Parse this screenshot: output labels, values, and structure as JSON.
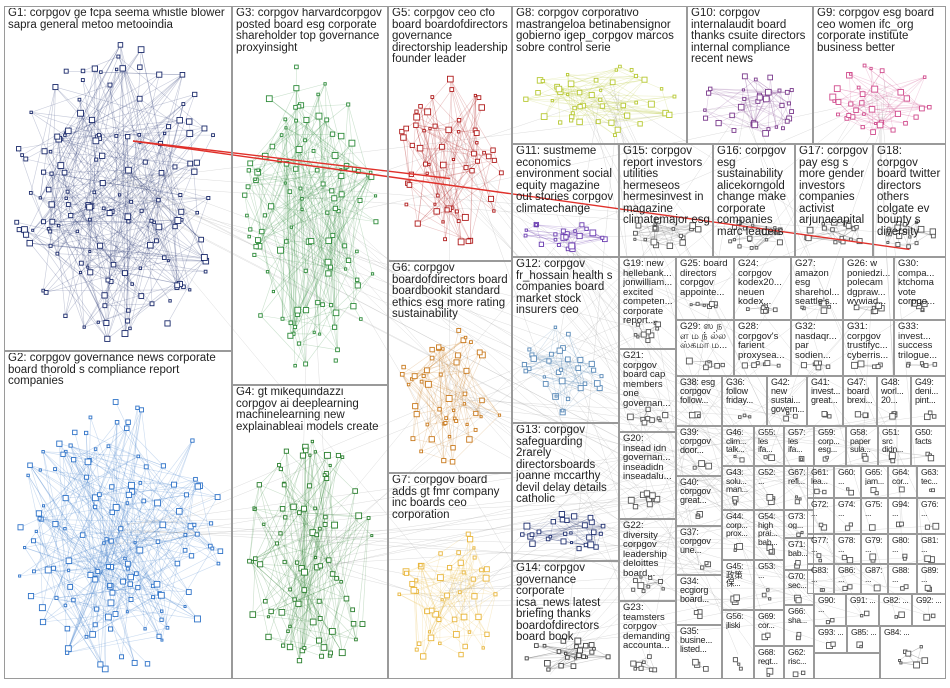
{
  "groups": [
    {
      "id": "G1",
      "label": "G1: corpgov ge fcpa seema whistle blower sapra general metoo metooindia",
      "color": "#1b2a6b"
    },
    {
      "id": "G2",
      "label": "G2: corpgov governance news corporate board thorold s compliance report companies",
      "color": "#2f73c8"
    },
    {
      "id": "G3",
      "label": "G3: corpgov harvardcorpgov posted board esg corporate shareholder top governance proxyinsight",
      "color": "#2e8b3a"
    },
    {
      "id": "G4",
      "label": "G4: gt mikequindazzi corpgov ai deeplearning machinelearning new explainableai models create",
      "color": "#2a7f2e"
    },
    {
      "id": "G5",
      "label": "G5: corpgov ceo cfo board boardofdirectors governance directorship leadership founder leader",
      "color": "#b01c1c"
    },
    {
      "id": "G6",
      "label": "G6: corpgov boardofdirectors board boardbookit standard ethics esg more rating sustainability",
      "color": "#c97a1e"
    },
    {
      "id": "G7",
      "label": "G7: corpgov board adds gt fmr company inc boards ceo corporation",
      "color": "#e8b63c"
    },
    {
      "id": "G8",
      "label": "G8: corpgov corporativo mastrangeloa betinabensignor gobierno igep_corpgov marcos sobre control serie",
      "color": "#b7c832"
    },
    {
      "id": "G9",
      "label": "G9: corpgov esg board ceo women ifc_org corporate institute business better",
      "color": "#d04a8c"
    },
    {
      "id": "G10",
      "label": "G10: corpgov internalaudit board thanks csuite directors internal compliance recent news",
      "color": "#7a3a8c"
    },
    {
      "id": "G11",
      "label": "G11: sustmeme economics environment social equity magazine out stories corpgov climatechange",
      "color": "#6a3cb0"
    },
    {
      "id": "G12",
      "label": "G12: corpgov fr_hossain health s companies board market stock insurers ceo",
      "color": "#5a8ab8"
    },
    {
      "id": "G13",
      "label": "G13: corpgov safeguarding 2rarely directorsboards joanne mccarthy devil delay details catholic",
      "color": "#203070"
    },
    {
      "id": "G14",
      "label": "G14: corpgov governance corporate icsa_news latest briefing thanks boardofdirectors board book",
      "color": "#444444"
    },
    {
      "id": "G15",
      "label": "G15: corpgov report investors utilities hermeseos hermesinvest in magazine climatemajor esg",
      "color": "#555555"
    },
    {
      "id": "G16",
      "label": "G16: corpgov esg sustainability alicekorngold change make corporate companies marc leaders",
      "color": "#555555"
    },
    {
      "id": "G17",
      "label": "G17: corpgov pay esg s more gender investors companies activist arjunacapital",
      "color": "#555555"
    },
    {
      "id": "G18",
      "label": "G18: corpgov board twitter directors others colgate ev bounty s diversity",
      "color": "#555555"
    },
    {
      "id": "G19",
      "label": "G19: new hellebank... jonwilliam... excited competen... corporate report...",
      "color": "#555555"
    },
    {
      "id": "G20",
      "label": "G20: insead idn governan... inseadidn inseadalu...",
      "color": "#555555"
    },
    {
      "id": "G21",
      "label": "G21: corpgov board cap members one governan...",
      "color": "#555555"
    },
    {
      "id": "G22",
      "label": "G22: diversity corpgov leadership deloittes board...",
      "color": "#555555"
    },
    {
      "id": "G23",
      "label": "G23: teamsters corpgov demanding accounta...",
      "color": "#555555"
    },
    {
      "id": "G24",
      "label": "G24: corpgov kodex20... neuen kodex...",
      "color": "#555555"
    },
    {
      "id": "G25",
      "label": "G25: board directors corpgov appointe...",
      "color": "#555555"
    },
    {
      "id": "G26",
      "label": "G26: w poniedzi... polecam dgpraw... wywiad...",
      "color": "#555555"
    },
    {
      "id": "G27",
      "label": "G27: amazon esg sharehol... seattle's...",
      "color": "#555555"
    },
    {
      "id": "G28",
      "label": "G28: corpgov's farient proxysea...",
      "color": "#555555"
    },
    {
      "id": "G29",
      "label": "G29: ஸ ந ள ம ந் ல்ல ஸ்கமா ம...",
      "color": "#555555"
    },
    {
      "id": "G30",
      "label": "G30: compa... ktchoma vote corpgo...",
      "color": "#555555"
    },
    {
      "id": "G31",
      "label": "G31: corpgov trustifyc... cyberris...",
      "color": "#555555"
    },
    {
      "id": "G32",
      "label": "G32: nasdaqr... par sodien...",
      "color": "#555555"
    },
    {
      "id": "G33",
      "label": "G33: invest... success trilogue...",
      "color": "#555555"
    },
    {
      "id": "G34",
      "label": "G34: ecgiorg board...",
      "color": "#555555"
    },
    {
      "id": "G35",
      "label": "G35: busine... listed...",
      "color": "#555555"
    },
    {
      "id": "G36",
      "label": "G36: follow friday...",
      "color": "#555555"
    },
    {
      "id": "G37",
      "label": "G37: corpgov une...",
      "color": "#555555"
    },
    {
      "id": "G38",
      "label": "G38: esg corpgov follow...",
      "color": "#555555"
    },
    {
      "id": "G39",
      "label": "G39: corpgov door...",
      "color": "#555555"
    },
    {
      "id": "G40",
      "label": "G40: corpgov great...",
      "color": "#555555"
    },
    {
      "id": "G41",
      "label": "G41: invest... great...",
      "color": "#555555"
    },
    {
      "id": "G42",
      "label": "G42: new sustai... govern...",
      "color": "#555555"
    },
    {
      "id": "G43",
      "label": "G43: solu... man...",
      "color": "#555555"
    },
    {
      "id": "G44",
      "label": "G44: corp... prox...",
      "color": "#555555"
    },
    {
      "id": "G45",
      "label": "G45: 政策 保...",
      "color": "#555555"
    },
    {
      "id": "G46",
      "label": "G46: clim... talk...",
      "color": "#555555"
    },
    {
      "id": "G47",
      "label": "G47: board brexi...",
      "color": "#555555"
    },
    {
      "id": "G48",
      "label": "G48: worl... 20...",
      "color": "#555555"
    },
    {
      "id": "G49",
      "label": "G49: deni... pint...",
      "color": "#555555"
    },
    {
      "id": "G50",
      "label": "G50: facts",
      "color": "#555555"
    },
    {
      "id": "G51",
      "label": "G51: src didn...",
      "color": "#555555"
    },
    {
      "id": "G52",
      "label": "G52: ...",
      "color": "#555555"
    },
    {
      "id": "G53",
      "label": "G53: ...",
      "color": "#555555"
    },
    {
      "id": "G54",
      "label": "G54: high prai... bab...",
      "color": "#555555"
    },
    {
      "id": "G55",
      "label": "G55: les ifa...",
      "color": "#555555"
    },
    {
      "id": "G56",
      "label": "G56: jliski",
      "color": "#555555"
    },
    {
      "id": "G57",
      "label": "G57: les ifa...",
      "color": "#555555"
    },
    {
      "id": "G58",
      "label": "G58: paper sula...",
      "color": "#555555"
    },
    {
      "id": "G59",
      "label": "G59: corp... esg...",
      "color": "#555555"
    },
    {
      "id": "G60",
      "label": "G60: ...",
      "color": "#555555"
    },
    {
      "id": "G61",
      "label": "G61: lea...",
      "color": "#555555"
    },
    {
      "id": "G62",
      "label": "G62: risc...",
      "color": "#555555"
    },
    {
      "id": "G63",
      "label": "G63: tec...",
      "color": "#555555"
    },
    {
      "id": "G64",
      "label": "G64: cor...",
      "color": "#555555"
    },
    {
      "id": "G65",
      "label": "G65: jam...",
      "color": "#555555"
    },
    {
      "id": "G66",
      "label": "G66: sha...",
      "color": "#555555"
    },
    {
      "id": "G67",
      "label": "G67: refi...",
      "color": "#555555"
    },
    {
      "id": "G68",
      "label": "G68: regt...",
      "color": "#555555"
    },
    {
      "id": "G69",
      "label": "G69: cor...",
      "color": "#555555"
    },
    {
      "id": "G70",
      "label": "G70: sec...",
      "color": "#555555"
    },
    {
      "id": "G71",
      "label": "G71: bab...",
      "color": "#555555"
    },
    {
      "id": "G72",
      "label": "G72: ...",
      "color": "#555555"
    },
    {
      "id": "G73",
      "label": "G73: og...",
      "color": "#555555"
    },
    {
      "id": "G74",
      "label": "G74: ...",
      "color": "#555555"
    },
    {
      "id": "G75",
      "label": "G75: ...",
      "color": "#555555"
    },
    {
      "id": "G76",
      "label": "G76: ...",
      "color": "#555555"
    },
    {
      "id": "G77",
      "label": "G77: ...",
      "color": "#555555"
    },
    {
      "id": "G78",
      "label": "G78: ...",
      "color": "#555555"
    },
    {
      "id": "G79",
      "label": "G79: ...",
      "color": "#555555"
    },
    {
      "id": "G80",
      "label": "G80: ...",
      "color": "#555555"
    },
    {
      "id": "G81",
      "label": "G81: ...",
      "color": "#555555"
    },
    {
      "id": "G82",
      "label": "G82: ...",
      "color": "#555555"
    },
    {
      "id": "G83",
      "label": "G83: ...",
      "color": "#555555"
    },
    {
      "id": "G84",
      "label": "G84: ...",
      "color": "#555555"
    },
    {
      "id": "G85",
      "label": "G85: ...",
      "color": "#555555"
    },
    {
      "id": "G86",
      "label": "G86: ...",
      "color": "#555555"
    },
    {
      "id": "G87",
      "label": "G87: ...",
      "color": "#555555"
    },
    {
      "id": "G88",
      "label": "G88: ...",
      "color": "#555555"
    },
    {
      "id": "G89",
      "label": "G89: ...",
      "color": "#555555"
    },
    {
      "id": "G90",
      "label": "G90: ...",
      "color": "#555555"
    },
    {
      "id": "G91",
      "label": "G91: ...",
      "color": "#555555"
    },
    {
      "id": "G92",
      "label": "G92: ...",
      "color": "#555555"
    },
    {
      "id": "G93",
      "label": "G93: ...",
      "color": "#555555"
    },
    {
      "id": "G94",
      "label": "G94: ...",
      "color": "#555555"
    }
  ],
  "colors": {
    "background": "#ffffff",
    "cell_border": "#9a9a9a",
    "edge": "#9c9c9c",
    "highlight_edge": "#e0302a"
  }
}
